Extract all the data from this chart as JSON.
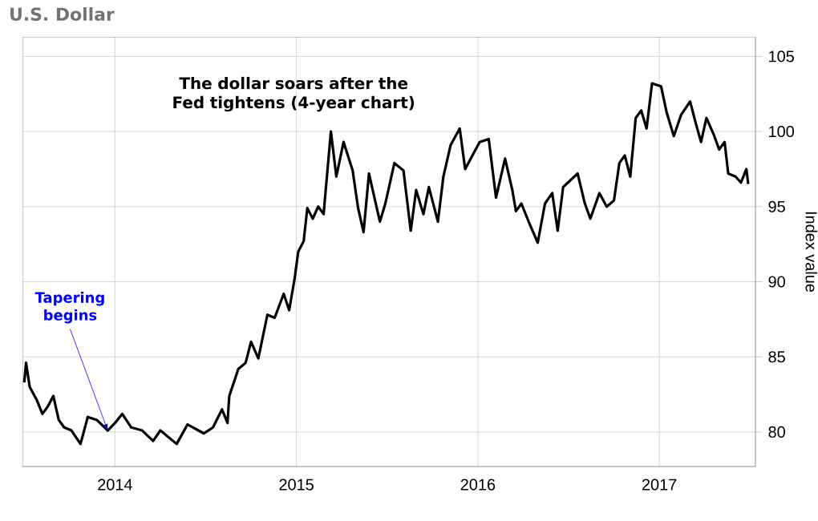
{
  "chart_data": {
    "type": "line",
    "title": "U.S. Dollar",
    "ylabel": "Index value",
    "annotations": [
      "The dollar soars after the Fed tightens (4-year chart)",
      {
        "text": "Tapering begins",
        "x": 2013.96,
        "y": 80.1
      }
    ],
    "x": [
      2013.5,
      2013.51,
      2013.53,
      2013.57,
      2013.6,
      2013.63,
      2013.66,
      2013.69,
      2013.72,
      2013.76,
      2013.81,
      2013.85,
      2013.9,
      2013.96,
      2014.0,
      2014.04,
      2014.09,
      2014.15,
      2014.21,
      2014.25,
      2014.34,
      2014.4,
      2014.49,
      2014.54,
      2014.59,
      2014.62,
      2014.63,
      2014.68,
      2014.72,
      2014.75,
      2014.79,
      2014.84,
      2014.88,
      2014.93,
      2014.96,
      2014.99,
      2015.01,
      2015.04,
      2015.06,
      2015.09,
      2015.12,
      2015.15,
      2015.16,
      2015.19,
      2015.22,
      2015.26,
      2015.31,
      2015.34,
      2015.37,
      2015.4,
      2015.46,
      2015.49,
      2015.54,
      2015.59,
      2015.63,
      2015.66,
      2015.7,
      2015.73,
      2015.78,
      2015.81,
      2015.85,
      2015.9,
      2015.93,
      2015.97,
      2016.01,
      2016.06,
      2016.1,
      2016.15,
      2016.19,
      2016.21,
      2016.24,
      2016.28,
      2016.33,
      2016.37,
      2016.41,
      2016.44,
      2016.47,
      2016.55,
      2016.59,
      2016.62,
      2016.67,
      2016.71,
      2016.75,
      2016.78,
      2016.81,
      2016.84,
      2016.87,
      2016.9,
      2016.93,
      2016.96,
      2017.01,
      2017.04,
      2017.08,
      2017.12,
      2017.17,
      2017.2,
      2017.23,
      2017.26,
      2017.3,
      2017.33,
      2017.36,
      2017.38,
      2017.42,
      2017.45,
      2017.48,
      2017.49
    ],
    "series": [
      {
        "color": "#000000",
        "values": [
          83.3,
          84.6,
          83.0,
          82.1,
          81.2,
          81.7,
          82.4,
          80.8,
          80.3,
          80.1,
          79.2,
          81.0,
          80.8,
          80.1,
          80.6,
          81.2,
          80.3,
          80.1,
          79.4,
          80.1,
          79.2,
          80.5,
          79.9,
          80.3,
          81.5,
          80.6,
          82.4,
          84.2,
          84.6,
          86.0,
          84.9,
          87.8,
          87.6,
          89.2,
          88.1,
          90.2,
          92.0,
          92.7,
          94.9,
          94.2,
          95.0,
          94.5,
          95.9,
          100.0,
          97.0,
          99.3,
          97.4,
          94.9,
          93.3,
          97.2,
          94.0,
          95.2,
          97.9,
          97.4,
          93.4,
          96.1,
          94.5,
          96.3,
          94.0,
          97.0,
          99.1,
          100.2,
          97.5,
          98.4,
          99.3,
          99.5,
          95.6,
          98.2,
          96.1,
          94.7,
          95.2,
          94.0,
          92.6,
          95.2,
          95.9,
          93.4,
          96.3,
          97.2,
          95.2,
          94.2,
          95.9,
          95.0,
          95.4,
          97.9,
          98.4,
          97.0,
          100.9,
          101.4,
          100.2,
          103.2,
          103.0,
          101.3,
          99.7,
          101.1,
          102.0,
          100.6,
          99.3,
          100.9,
          99.8,
          98.8,
          99.3,
          97.2,
          97.0,
          96.6,
          97.5,
          96.5
        ]
      }
    ],
    "xlim": [
      2013.49,
      2017.53
    ],
    "ylim": [
      77.7,
      106.3
    ],
    "xticks": [
      2014,
      2015,
      2016,
      2017
    ],
    "yticks": [
      80,
      85,
      90,
      95,
      100,
      105
    ],
    "grid": true,
    "marker": "none",
    "line_style": "solid"
  }
}
